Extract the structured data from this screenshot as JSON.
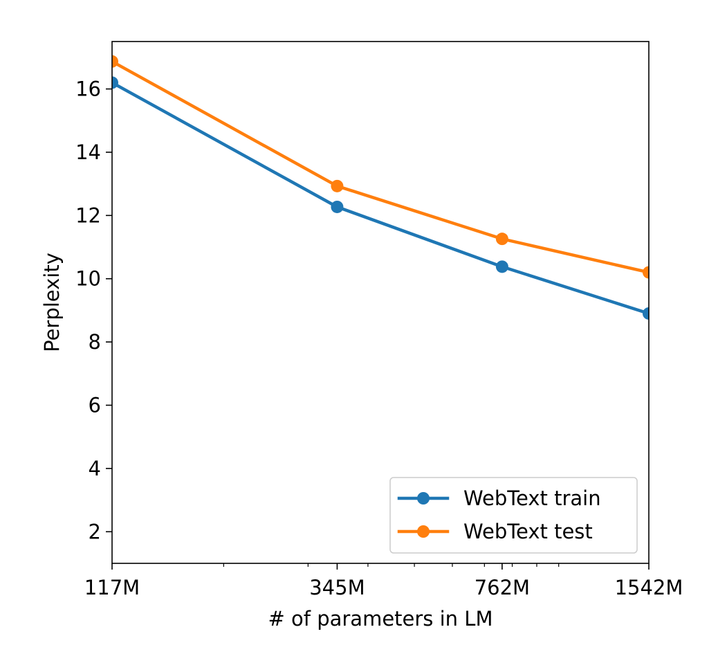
{
  "chart_data": {
    "type": "line",
    "x_scale": "log",
    "x": [
      117,
      345,
      762,
      1542
    ],
    "x_tick_labels": [
      "117M",
      "345M",
      "762M",
      "1542M"
    ],
    "xlim": [
      117,
      1542
    ],
    "ylim": [
      1.0,
      17.5
    ],
    "y_ticks": [
      2,
      4,
      6,
      8,
      10,
      12,
      14,
      16
    ],
    "xlabel": "# of parameters in LM",
    "ylabel": "Perplexity",
    "grid": false,
    "legend_position": "lower-right",
    "series": [
      {
        "name": "WebText train",
        "color": "#1f77b4",
        "values": [
          16.2,
          12.27,
          10.38,
          8.9
        ]
      },
      {
        "name": "WebText test",
        "color": "#ff7f0e",
        "values": [
          16.87,
          12.93,
          11.26,
          10.2
        ]
      }
    ]
  }
}
